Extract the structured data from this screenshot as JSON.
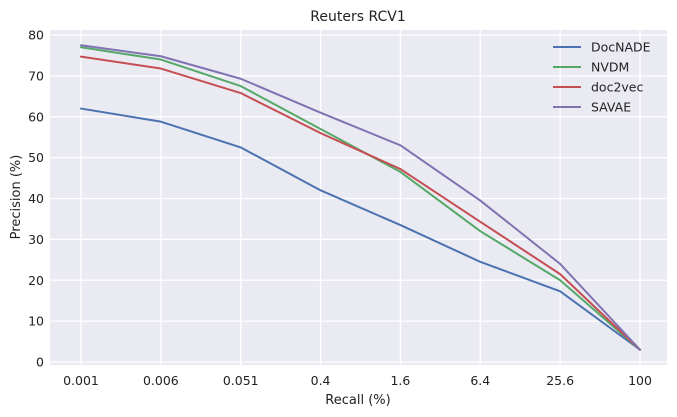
{
  "chart_data": {
    "type": "line",
    "title": "Reuters RCV1",
    "xlabel": "Recall (%)",
    "ylabel": "Precision (%)",
    "categories": [
      "0.001",
      "0.006",
      "0.051",
      "0.4",
      "1.6",
      "6.4",
      "25.6",
      "100"
    ],
    "ylim": [
      0,
      80
    ],
    "yticks": [
      0,
      10,
      20,
      30,
      40,
      50,
      60,
      70,
      80
    ],
    "grid": true,
    "legend_position": "top-right",
    "series": [
      {
        "name": "DocNADE",
        "color": "#4c72b0",
        "values": [
          62.0,
          58.8,
          52.5,
          42.0,
          33.5,
          24.5,
          17.3,
          3.0
        ]
      },
      {
        "name": "NVDM",
        "color": "#55a868",
        "values": [
          77.0,
          74.0,
          67.5,
          57.0,
          46.5,
          32.0,
          20.0,
          3.0
        ]
      },
      {
        "name": "doc2vec",
        "color": "#c44e52",
        "values": [
          74.7,
          71.8,
          65.8,
          56.0,
          47.2,
          34.3,
          21.5,
          3.0
        ]
      },
      {
        "name": "SAVAE",
        "color": "#8172b2",
        "values": [
          77.5,
          74.8,
          69.3,
          61.0,
          53.0,
          39.5,
          24.0,
          3.0
        ]
      }
    ]
  }
}
